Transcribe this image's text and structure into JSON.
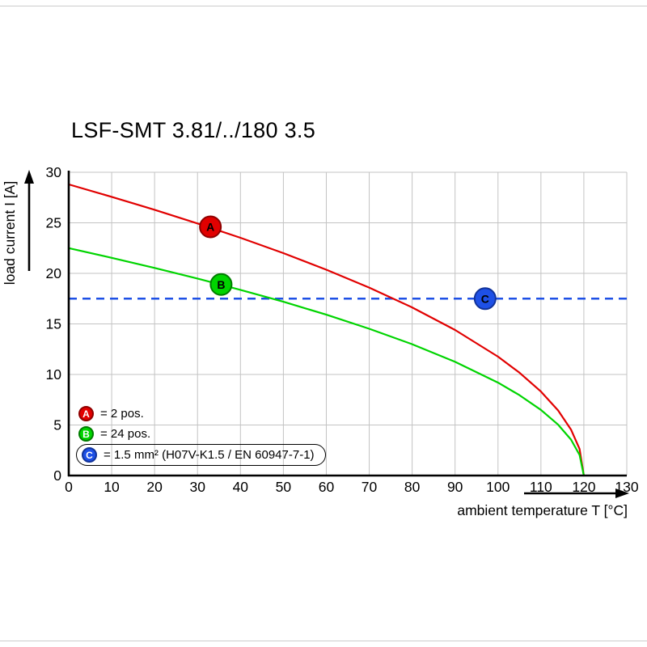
{
  "chart_data": {
    "type": "line",
    "title": "LSF-SMT 3.81/../180 3.5",
    "xlabel": "ambient temperature T [°C]",
    "ylabel": "load current I [A]",
    "xlim": [
      0,
      130
    ],
    "ylim": [
      0,
      30
    ],
    "x_ticks": [
      0,
      10,
      20,
      30,
      40,
      50,
      60,
      70,
      80,
      90,
      100,
      110,
      120,
      130
    ],
    "y_ticks": [
      0,
      5,
      10,
      15,
      20,
      25,
      30
    ],
    "grid": true,
    "grid_color": "#c3c3c3",
    "series": [
      {
        "name": "A",
        "label": "= 2 pos.",
        "color": "#e10000",
        "edge": "#8f0000",
        "x": [
          0,
          10,
          20,
          30,
          40,
          50,
          60,
          70,
          80,
          90,
          100,
          105,
          110,
          114,
          117,
          119,
          120
        ],
        "y": [
          28.8,
          27.57,
          26.29,
          24.94,
          23.52,
          22.0,
          20.36,
          18.59,
          16.63,
          14.4,
          11.76,
          10.18,
          8.31,
          6.44,
          4.55,
          2.63,
          0
        ]
      },
      {
        "name": "B",
        "label": "= 24 pos.",
        "color": "#00d400",
        "edge": "#007d00",
        "x": [
          0,
          10,
          20,
          30,
          40,
          50,
          60,
          70,
          80,
          90,
          100,
          105,
          110,
          114,
          117,
          119,
          120
        ],
        "y": [
          22.5,
          21.54,
          20.54,
          19.49,
          18.37,
          17.19,
          15.91,
          14.52,
          12.99,
          11.25,
          9.19,
          7.95,
          6.5,
          5.03,
          3.56,
          2.05,
          0
        ]
      },
      {
        "name": "C",
        "label": "= 1.5 mm² (H07V-K1.5 / EN 60947-7-1)",
        "color": "#1e50e6",
        "edge": "#123399",
        "style": "dashed",
        "y_const": 17.5
      }
    ],
    "markers": [
      {
        "letter": "A",
        "x": 33,
        "y": 24.6
      },
      {
        "letter": "B",
        "x": 35.5,
        "y": 18.9
      },
      {
        "letter": "C",
        "x": 97,
        "y": 17.5
      }
    ]
  }
}
